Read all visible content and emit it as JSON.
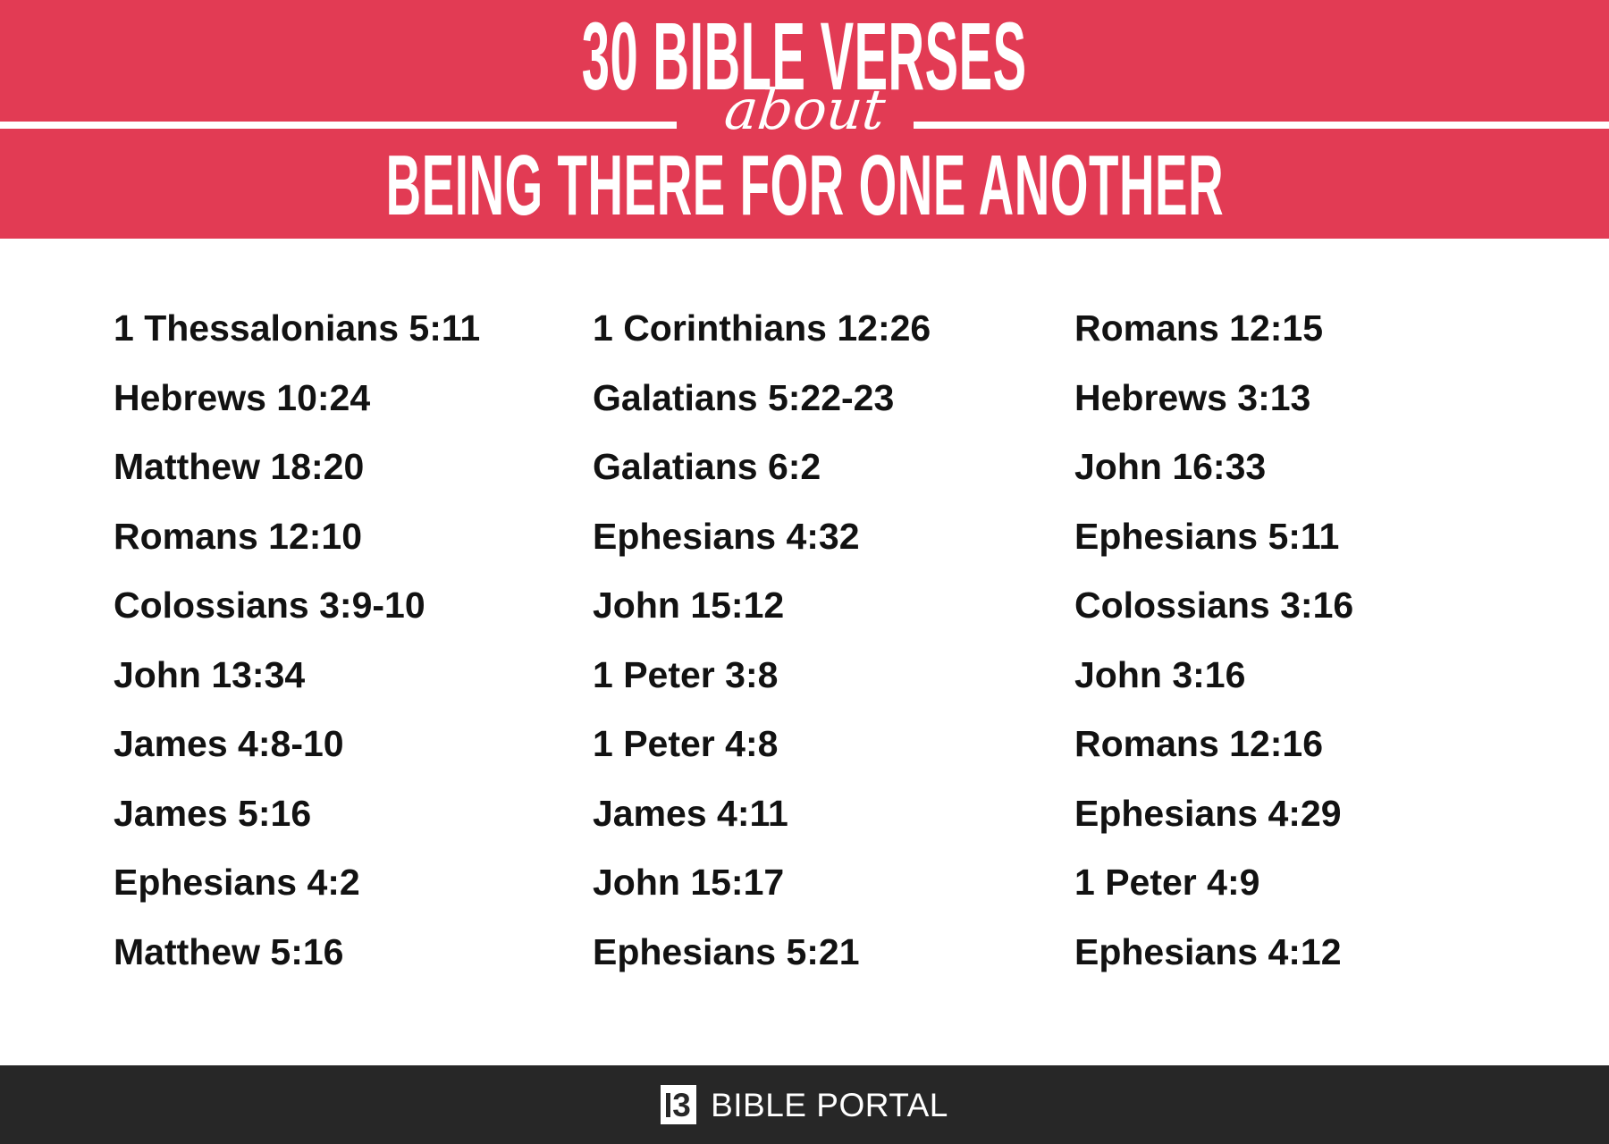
{
  "header": {
    "title": "30 BIBLE VERSES",
    "connector": "about",
    "subtitle": "BEING THERE FOR ONE ANOTHER",
    "bg_color": "#e23b54",
    "text_color": "#ffffff"
  },
  "verses": {
    "columns": [
      [
        "1 Thessalonians 5:11",
        "Hebrews 10:24",
        "Matthew 18:20",
        "Romans 12:10",
        "Colossians 3:9-10",
        "John 13:34",
        "James 4:8-10",
        "James 5:16",
        "Ephesians 4:2",
        "Matthew 5:16"
      ],
      [
        "1 Corinthians 12:26",
        "Galatians 5:22-23",
        "Galatians 6:2",
        "Ephesians 4:32",
        "John 15:12",
        "1 Peter 3:8",
        "1 Peter 4:8",
        "James 4:11",
        "John 15:17",
        "Ephesians 5:21"
      ],
      [
        "Romans 12:15",
        "Hebrews 3:13",
        "John 16:33",
        "Ephesians 5:11",
        "Colossians 3:16",
        "John 3:16",
        "Romans 12:16",
        "Ephesians 4:29",
        "1 Peter 4:9",
        "Ephesians 4:12"
      ]
    ],
    "text_color": "#121212"
  },
  "footer": {
    "brand": "BIBLE PORTAL",
    "logo_glyph": "3",
    "bg_color": "#272727"
  }
}
